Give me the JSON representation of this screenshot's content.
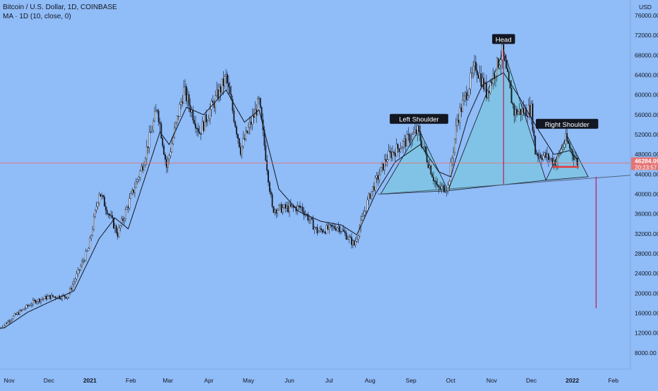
{
  "legend": {
    "title": "Bitcoin / U.S. Dollar, 1D, COINBASE",
    "indicator": "MA · 1D (10, close, 0)"
  },
  "price_axis": {
    "currency": "USD",
    "last_price": "46284.09",
    "countdown": "20:23:57"
  },
  "colors": {
    "background": "#90bcf7",
    "candle": "#131722",
    "ma_line": "#131722",
    "pattern_fill": "#7ec4e3",
    "head_line": "#c2185b",
    "support_line": "#e53935",
    "price_line": "#e57373"
  },
  "annotations": [
    {
      "label": "Left Shoulder",
      "date": "2021-09-07",
      "price": 52900
    },
    {
      "label": "Head",
      "date": "2021-11-10",
      "price": 69000
    },
    {
      "label": "Right Shoulder",
      "date": "2021-12-28",
      "price": 51900
    }
  ],
  "chart_data": {
    "type": "candlestick",
    "symbol": "Bitcoin / U.S. Dollar",
    "interval": "1D",
    "exchange": "COINBASE",
    "indicator": "MA 10",
    "ylim": [
      5000,
      78000
    ],
    "xlim": [
      "2020-10-25",
      "2022-02-14"
    ],
    "y_ticks": [
      8000,
      12000,
      16000,
      20000,
      24000,
      28000,
      32000,
      36000,
      40000,
      44000,
      48000,
      52000,
      56000,
      60000,
      64000,
      68000,
      72000,
      76000
    ],
    "x_ticks": [
      {
        "date": "2020-11-01",
        "label": "Nov"
      },
      {
        "date": "2020-12-01",
        "label": "Dec"
      },
      {
        "date": "2021-01-01",
        "label": "2021"
      },
      {
        "date": "2021-02-01",
        "label": "Feb"
      },
      {
        "date": "2021-03-01",
        "label": "Mar"
      },
      {
        "date": "2021-04-01",
        "label": "Apr"
      },
      {
        "date": "2021-05-01",
        "label": "May"
      },
      {
        "date": "2021-06-01",
        "label": "Jun"
      },
      {
        "date": "2021-07-01",
        "label": "Jul"
      },
      {
        "date": "2021-08-01",
        "label": "Aug"
      },
      {
        "date": "2021-09-01",
        "label": "Sep"
      },
      {
        "date": "2021-10-01",
        "label": "Oct"
      },
      {
        "date": "2021-11-01",
        "label": "Nov"
      },
      {
        "date": "2021-12-01",
        "label": "Dec"
      },
      {
        "date": "2022-01-01",
        "label": "2022"
      },
      {
        "date": "2022-02-01",
        "label": "Feb"
      }
    ],
    "close_path": [
      {
        "date": "2020-10-25",
        "close": 13000
      },
      {
        "date": "2020-11-05",
        "close": 15500
      },
      {
        "date": "2020-11-20",
        "close": 18400
      },
      {
        "date": "2020-12-01",
        "close": 19300
      },
      {
        "date": "2020-12-15",
        "close": 19400
      },
      {
        "date": "2020-12-31",
        "close": 29000
      },
      {
        "date": "2021-01-08",
        "close": 40500
      },
      {
        "date": "2021-01-22",
        "close": 32000
      },
      {
        "date": "2021-02-10",
        "close": 46000
      },
      {
        "date": "2021-02-21",
        "close": 57500
      },
      {
        "date": "2021-02-28",
        "close": 45500
      },
      {
        "date": "2021-03-13",
        "close": 61000
      },
      {
        "date": "2021-03-25",
        "close": 52500
      },
      {
        "date": "2021-04-14",
        "close": 63500
      },
      {
        "date": "2021-04-25",
        "close": 49000
      },
      {
        "date": "2021-05-09",
        "close": 58500
      },
      {
        "date": "2021-05-19",
        "close": 37000
      },
      {
        "date": "2021-06-10",
        "close": 37300
      },
      {
        "date": "2021-06-22",
        "close": 32500
      },
      {
        "date": "2021-07-08",
        "close": 33500
      },
      {
        "date": "2021-07-20",
        "close": 29800
      },
      {
        "date": "2021-08-01",
        "close": 40000
      },
      {
        "date": "2021-08-14",
        "close": 47500
      },
      {
        "date": "2021-08-23",
        "close": 49500
      },
      {
        "date": "2021-09-06",
        "close": 52700
      },
      {
        "date": "2021-09-21",
        "close": 41000
      },
      {
        "date": "2021-09-29",
        "close": 41500
      },
      {
        "date": "2021-10-06",
        "close": 55000
      },
      {
        "date": "2021-10-20",
        "close": 66000
      },
      {
        "date": "2021-10-28",
        "close": 60500
      },
      {
        "date": "2021-11-09",
        "close": 68500
      },
      {
        "date": "2021-11-18",
        "close": 56500
      },
      {
        "date": "2021-12-01",
        "close": 57000
      },
      {
        "date": "2021-12-04",
        "close": 48500
      },
      {
        "date": "2021-12-20",
        "close": 46500
      },
      {
        "date": "2021-12-27",
        "close": 51000
      },
      {
        "date": "2022-01-05",
        "close": 46300
      }
    ],
    "ma_path": [
      {
        "date": "2020-10-28",
        "value": 13000
      },
      {
        "date": "2020-11-15",
        "value": 16200
      },
      {
        "date": "2020-12-01",
        "value": 18200
      },
      {
        "date": "2020-12-20",
        "value": 20500
      },
      {
        "date": "2021-01-08",
        "value": 31000
      },
      {
        "date": "2021-01-20",
        "value": 35200
      },
      {
        "date": "2021-01-30",
        "value": 33000
      },
      {
        "date": "2021-02-15",
        "value": 46000
      },
      {
        "date": "2021-02-23",
        "value": 52500
      },
      {
        "date": "2021-03-02",
        "value": 50000
      },
      {
        "date": "2021-03-15",
        "value": 57500
      },
      {
        "date": "2021-03-28",
        "value": 56000
      },
      {
        "date": "2021-04-14",
        "value": 61000
      },
      {
        "date": "2021-04-28",
        "value": 54500
      },
      {
        "date": "2021-05-09",
        "value": 57000
      },
      {
        "date": "2021-05-24",
        "value": 41000
      },
      {
        "date": "2021-06-08",
        "value": 36500
      },
      {
        "date": "2021-06-25",
        "value": 34500
      },
      {
        "date": "2021-07-10",
        "value": 33800
      },
      {
        "date": "2021-07-22",
        "value": 31800
      },
      {
        "date": "2021-08-05",
        "value": 40000
      },
      {
        "date": "2021-08-20",
        "value": 46500
      },
      {
        "date": "2021-09-08",
        "value": 50000
      },
      {
        "date": "2021-09-22",
        "value": 44500
      },
      {
        "date": "2021-10-01",
        "value": 43500
      },
      {
        "date": "2021-10-14",
        "value": 55500
      },
      {
        "date": "2021-10-25",
        "value": 62000
      },
      {
        "date": "2021-11-10",
        "value": 64500
      },
      {
        "date": "2021-11-22",
        "value": 59500
      },
      {
        "date": "2021-12-05",
        "value": 53500
      },
      {
        "date": "2021-12-18",
        "value": 48000
      },
      {
        "date": "2021-12-30",
        "value": 48800
      },
      {
        "date": "2022-01-05",
        "value": 47000
      }
    ],
    "pattern": {
      "type": "head and shoulders",
      "neckline": [
        {
          "date": "2021-08-07",
          "price": 40000
        },
        {
          "date": "2022-02-14",
          "price": 43800
        }
      ],
      "triangles": [
        [
          {
            "date": "2021-08-09",
            "price": 40000
          },
          {
            "date": "2021-09-07",
            "price": 53000
          },
          {
            "date": "2021-09-29",
            "price": 40700
          }
        ],
        [
          {
            "date": "2021-09-29",
            "price": 40700
          },
          {
            "date": "2021-11-10",
            "price": 69000
          },
          {
            "date": "2021-12-12",
            "price": 42800
          }
        ],
        [
          {
            "date": "2021-12-12",
            "price": 42800
          },
          {
            "date": "2021-12-28",
            "price": 51800
          },
          {
            "date": "2022-01-13",
            "price": 43500
          }
        ]
      ],
      "head_vertical": {
        "date": "2021-11-10",
        "from": 69000,
        "to": 42000
      },
      "support": {
        "from": "2021-12-17",
        "to": "2022-01-06",
        "price": 45500
      },
      "target_projection": {
        "date": "2022-01-19",
        "from": 43500,
        "to": 17000
      }
    }
  }
}
